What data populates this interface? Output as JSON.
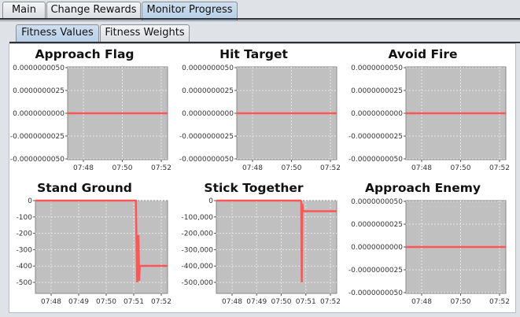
{
  "main_tabs": [
    {
      "label": "Main",
      "active": false
    },
    {
      "label": "Change Rewards",
      "active": false
    },
    {
      "label": "Monitor Progress",
      "active": true
    }
  ],
  "sub_tabs": [
    {
      "label": "Fitness Values",
      "active": true
    },
    {
      "label": "Fitness Weights",
      "active": false
    }
  ],
  "colors": {
    "series": "#ff5555",
    "plot_bg": "#c0c0c0",
    "grid": "#e8e8e8",
    "tab_active": "#c4d8ec"
  },
  "chart_data": [
    {
      "type": "line",
      "title": "Approach Flag",
      "yticks": [
        "0.0000000050",
        "0.0000000025",
        "0.0000000000",
        "-0.0000000025",
        "-0.0000000050"
      ],
      "ylim": [
        -5e-09,
        5e-09
      ],
      "xticks": [
        "07:48",
        "07:50",
        "07:52"
      ],
      "xlim": [
        0,
        1
      ],
      "series": [
        {
          "x": [
            0,
            1
          ],
          "y": [
            0,
            0
          ]
        }
      ]
    },
    {
      "type": "line",
      "title": "Hit Target",
      "yticks": [
        "0.0000000050",
        "0.0000000025",
        "0.0000000000",
        "-0.0000000025",
        "-0.0000000050"
      ],
      "ylim": [
        -5e-09,
        5e-09
      ],
      "xticks": [
        "07:48",
        "07:50",
        "07:52"
      ],
      "xlim": [
        0,
        1
      ],
      "series": [
        {
          "x": [
            0,
            1
          ],
          "y": [
            0,
            0
          ]
        }
      ]
    },
    {
      "type": "line",
      "title": "Avoid Fire",
      "yticks": [
        "0.0000000050",
        "0.0000000025",
        "0.0000000000",
        "-0.0000000025",
        "-0.0000000050"
      ],
      "ylim": [
        -5e-09,
        5e-09
      ],
      "xticks": [
        "07:48",
        "07:50",
        "07:52"
      ],
      "xlim": [
        0,
        1
      ],
      "series": [
        {
          "x": [
            0,
            1
          ],
          "y": [
            0,
            0
          ]
        }
      ]
    },
    {
      "type": "line",
      "title": "Stand Ground",
      "yticks": [
        "0",
        "-100",
        "-200",
        "-300",
        "-400",
        "-500"
      ],
      "ylim": [
        -570,
        0
      ],
      "xticks": [
        "07:48",
        "07:49",
        "07:50",
        "07:51",
        "07:52"
      ],
      "xlim": [
        0,
        1
      ],
      "series": [
        {
          "x": [
            0,
            0.76,
            0.77,
            0.78,
            0.785,
            0.79,
            0.8,
            1
          ],
          "y": [
            0,
            0,
            -570,
            -240,
            -560,
            -455,
            -455,
            -455
          ]
        }
      ]
    },
    {
      "type": "line",
      "title": "Stick Together",
      "yticks": [
        "0",
        "-100,000",
        "-200,000",
        "-300,000",
        "-400,000",
        "-500,000"
      ],
      "ylim": [
        -540000,
        0
      ],
      "xticks": [
        "07:48",
        "07:49",
        "07:50",
        "07:51",
        "07:52"
      ],
      "xlim": [
        0,
        1
      ],
      "series": [
        {
          "x": [
            0,
            0.7,
            0.705,
            0.71,
            0.715,
            0.72,
            0.73,
            1
          ],
          "y": [
            0,
            0,
            -5000,
            -540000,
            -20000,
            -70000,
            -70000,
            -70000
          ]
        }
      ]
    },
    {
      "type": "line",
      "title": "Approach Enemy",
      "yticks": [
        "0.0000000050",
        "0.0000000025",
        "0.0000000000",
        "-0.0000000025",
        "-0.0000000050"
      ],
      "ylim": [
        -5e-09,
        5e-09
      ],
      "xticks": [
        "07:48",
        "07:50",
        "07:52"
      ],
      "xlim": [
        0,
        1
      ],
      "series": [
        {
          "x": [
            0,
            1
          ],
          "y": [
            0,
            0
          ]
        }
      ]
    }
  ]
}
